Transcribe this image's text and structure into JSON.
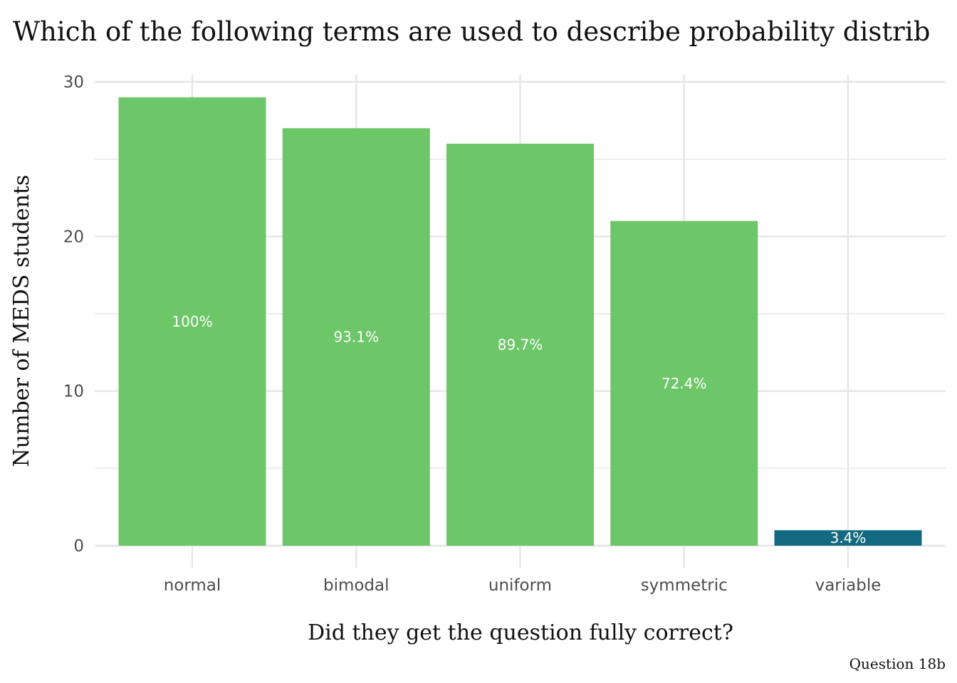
{
  "chart_data": {
    "type": "bar",
    "title": "Which of the following terms are used to describe probability distrib",
    "xlabel": "Did they get the question fully correct?",
    "ylabel": "Number of MEDS students",
    "caption": "Question 18b",
    "categories": [
      "normal",
      "bimodal",
      "uniform",
      "symmetric",
      "variable"
    ],
    "values": [
      29,
      27,
      26,
      21,
      1
    ],
    "labels": [
      "100%",
      "93.1%",
      "89.7%",
      "72.4%",
      "3.4%"
    ],
    "correct": [
      true,
      true,
      true,
      true,
      false
    ],
    "ylim": [
      0,
      30
    ],
    "yticks": [
      0,
      10,
      20,
      30
    ],
    "grid": true,
    "colors": {
      "correct": "#6DC668",
      "incorrect": "#136A80",
      "grid": "#e5e5e5"
    }
  }
}
